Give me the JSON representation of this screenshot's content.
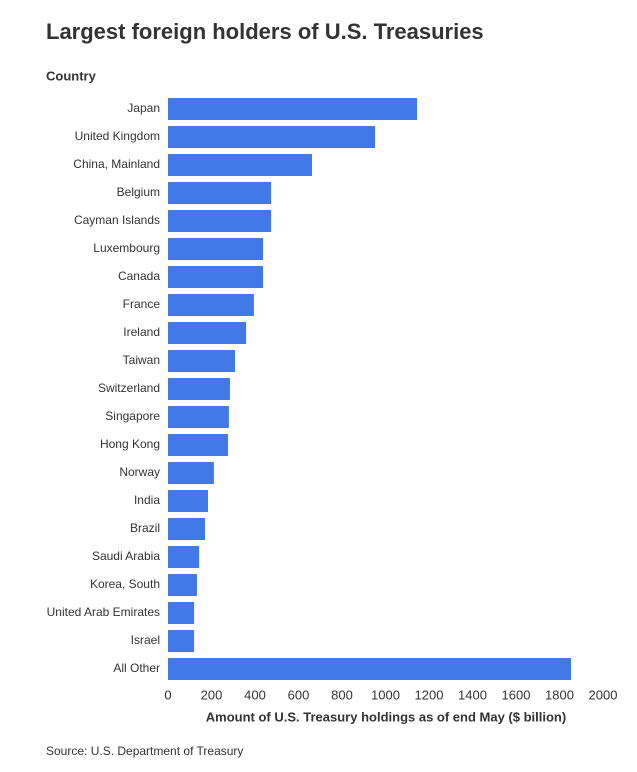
{
  "chart_data": {
    "type": "bar",
    "orientation": "horizontal",
    "title": "Largest foreign holders of U.S. Treasuries",
    "y_label": "Country",
    "x_label": "Amount of U.S. Treasury holdings as of end May ($ billion)",
    "source": "Source: U.S. Department of Treasury",
    "categories": [
      "Japan",
      "United Kingdom",
      "China, Mainland",
      "Belgium",
      "Cayman Islands",
      "Luxembourg",
      "Canada",
      "France",
      "Ireland",
      "Taiwan",
      "Switzerland",
      "Singapore",
      "Hong Kong",
      "Norway",
      "India",
      "Brazil",
      "Saudi Arabia",
      "Korea, South",
      "United Arab Emirates",
      "Israel",
      "All Other"
    ],
    "values": [
      1145,
      952,
      662,
      474,
      474,
      437,
      437,
      395,
      359,
      308,
      285,
      280,
      276,
      211,
      184,
      170,
      143,
      133,
      120,
      120,
      1853
    ],
    "color": "#4279e6",
    "xlim": [
      0,
      2000
    ],
    "xticks": [
      0,
      200,
      400,
      600,
      800,
      1000,
      1200,
      1400,
      1600,
      1800,
      2000
    ],
    "grid": false
  }
}
